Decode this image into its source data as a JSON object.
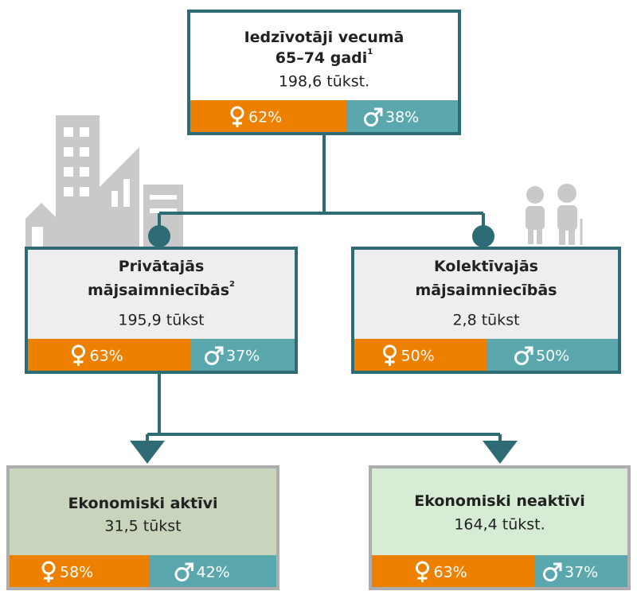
{
  "top": {
    "title": [
      "Iedzīvotāji vecumā",
      "65–74 gadi"
    ],
    "note": "1",
    "value": "198,6 tūkst.",
    "female": "62%",
    "male": "38%"
  },
  "private": {
    "title": [
      "Privātajās",
      "mājsaimniecībās"
    ],
    "note": "2",
    "value": "195,9 tūkst",
    "female": "63%",
    "male": "37%"
  },
  "collective": {
    "title": [
      "Kolektīvajās",
      "mājsaimniecībās"
    ],
    "value": "2,8 tūkst",
    "female": "50%",
    "male": "50%"
  },
  "active": {
    "title": [
      "Ekonomiski aktīvi"
    ],
    "value": "31,5 tūkst",
    "female": "58%",
    "male": "42%"
  },
  "inactive": {
    "title": [
      "Ekonomiski neaktīvi"
    ],
    "value": "164,4 tūkst.",
    "female": "63%",
    "male": "37%"
  }
}
